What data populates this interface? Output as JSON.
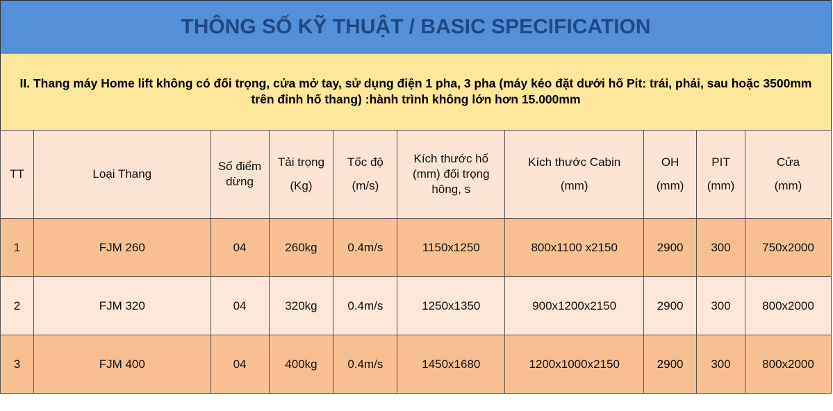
{
  "title": "THÔNG SỐ KỸ THUẬT / BASIC SPECIFICATION",
  "subtitle": "II. Thang máy Home lift không có đối  trọng, cửa mở tay, sử dụng điện 1 pha, 3 pha (máy kéo đặt dưới hố Pit: trái, phải, sau hoặc 3500mm trên đỉnh hố thang) :hành trình không lớn hơn 15.000mm",
  "headers": [
    {
      "l1": "TT",
      "l2": ""
    },
    {
      "l1": "Loại Thang",
      "l2": ""
    },
    {
      "l1": "Số điểm dừng",
      "l2": ""
    },
    {
      "l1": "Tải trọng",
      "l2": "(Kg)"
    },
    {
      "l1": "Tốc độ",
      "l2": "(m/s)"
    },
    {
      "l1": "Kích thước hố (mm) đối trọng hông, s",
      "l2": ""
    },
    {
      "l1": "Kích thước Cabin",
      "l2": "(mm)"
    },
    {
      "l1": "OH",
      "l2": "(mm)"
    },
    {
      "l1": "PIT",
      "l2": "(mm)"
    },
    {
      "l1": "Cửa",
      "l2": "(mm)"
    }
  ],
  "rows": [
    [
      "1",
      "FJM 260",
      "04",
      "260kg",
      "0.4m/s",
      "1150x1250",
      "800x1100 x2150",
      "2900",
      "300",
      "750x2000"
    ],
    [
      "2",
      "FJM 320",
      "04",
      "320kg",
      "0.4m/s",
      "1250x1350",
      "900x1200x2150",
      "2900",
      "300",
      "800x2000"
    ],
    [
      "3",
      "FJM 400",
      "04",
      "400kg",
      "0.4m/s",
      "1450x1680",
      "1200x1000x2150",
      "2900",
      "300",
      "800x2000"
    ]
  ]
}
